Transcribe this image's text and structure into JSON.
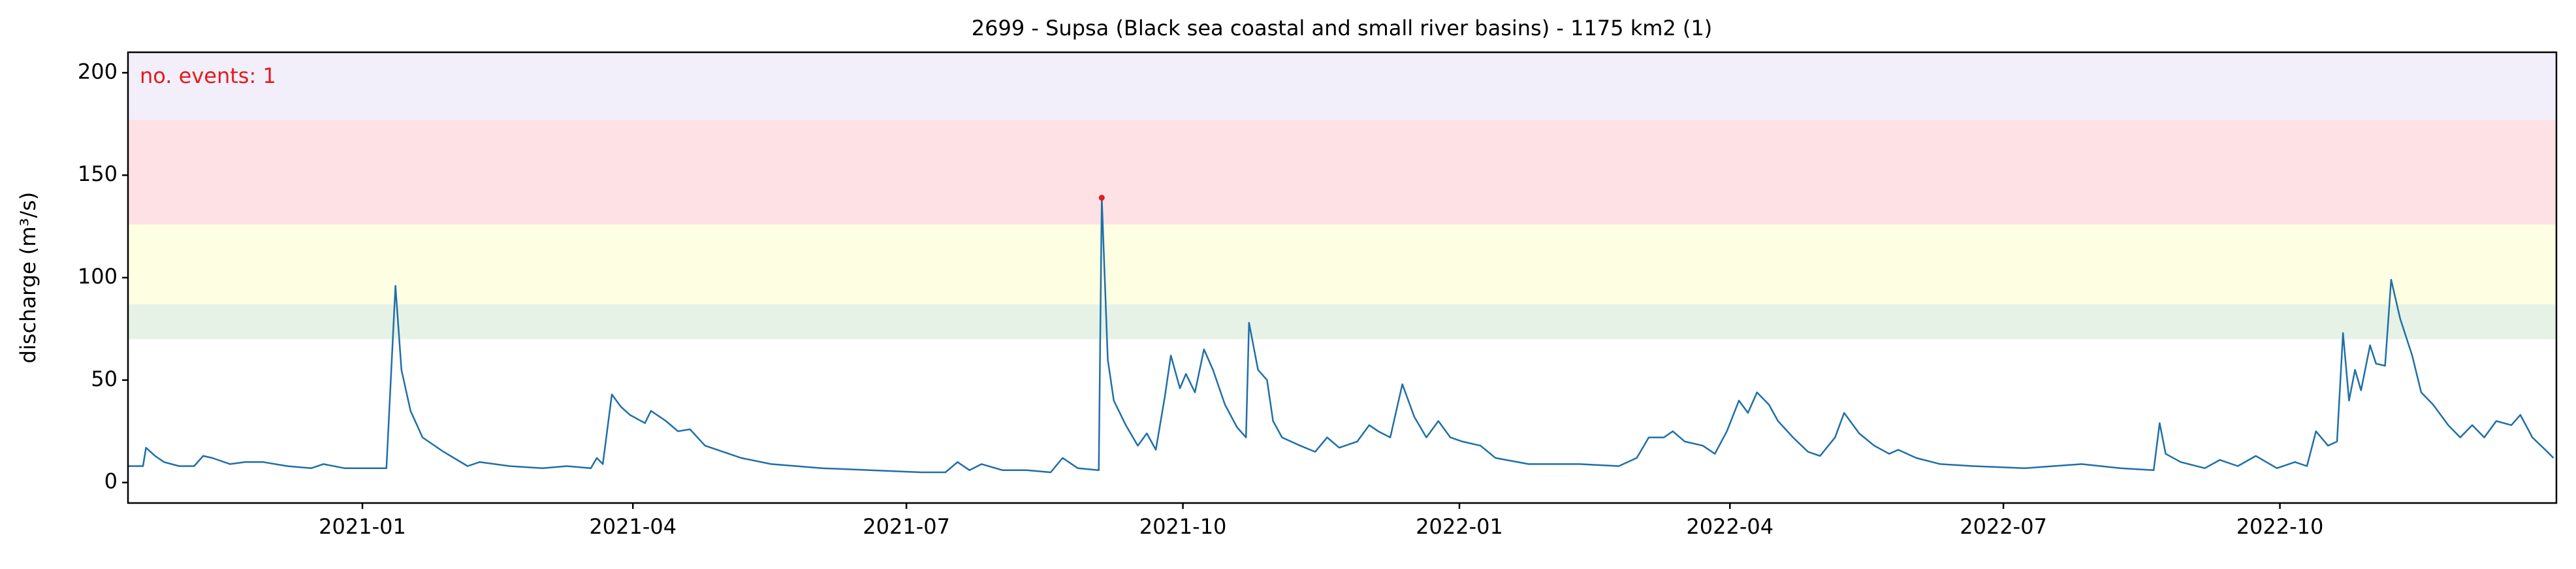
{
  "chart_data": {
    "type": "line",
    "title": "2699 - Supsa (Black sea coastal and small river basins) - 1175 km2 (1)",
    "y_label": "discharge (m³/s)",
    "annotation": "no. events: 1",
    "annotation_color": "#e41a1c",
    "color": "#1f6fa8",
    "xlim": [
      "2020-10-15",
      "2023-01-01"
    ],
    "xticks": [
      {
        "value": "2021-01-01",
        "label": "2021-01"
      },
      {
        "value": "2021-04-01",
        "label": "2021-04"
      },
      {
        "value": "2021-07-01",
        "label": "2021-07"
      },
      {
        "value": "2021-10-01",
        "label": "2021-10"
      },
      {
        "value": "2022-01-01",
        "label": "2022-01"
      },
      {
        "value": "2022-04-01",
        "label": "2022-04"
      },
      {
        "value": "2022-07-01",
        "label": "2022-07"
      },
      {
        "value": "2022-10-01",
        "label": "2022-10"
      }
    ],
    "ylim": [
      -10,
      210
    ],
    "yticks": [
      0,
      50,
      100,
      150,
      200
    ],
    "bands": [
      {
        "from": 70,
        "to": 87,
        "color": "#e6f2e6"
      },
      {
        "from": 87,
        "to": 126,
        "color": "#fefee2"
      },
      {
        "from": 126,
        "to": 177,
        "color": "#fee1e4"
      },
      {
        "from": 177,
        "to": 210,
        "color": "#f2effa"
      }
    ],
    "events": [
      {
        "x": "2021-09-04",
        "y": 139,
        "color": "#e41a1c"
      }
    ],
    "x": [
      "2020-10-15",
      "2020-10-20",
      "2020-10-21",
      "2020-10-24",
      "2020-10-27",
      "2020-11-01",
      "2020-11-06",
      "2020-11-09",
      "2020-11-12",
      "2020-11-18",
      "2020-11-23",
      "2020-11-29",
      "2020-12-07",
      "2020-12-15",
      "2020-12-19",
      "2020-12-26",
      "2021-01-09",
      "2021-01-12",
      "2021-01-14",
      "2021-01-17",
      "2021-01-21",
      "2021-01-28",
      "2021-02-05",
      "2021-02-09",
      "2021-02-19",
      "2021-03-02",
      "2021-03-10",
      "2021-03-18",
      "2021-03-20",
      "2021-03-22",
      "2021-03-25",
      "2021-03-28",
      "2021-03-31",
      "2021-04-05",
      "2021-04-07",
      "2021-04-12",
      "2021-04-16",
      "2021-04-20",
      "2021-04-25",
      "2021-05-01",
      "2021-05-07",
      "2021-05-17",
      "2021-06-03",
      "2021-06-19",
      "2021-07-06",
      "2021-07-14",
      "2021-07-18",
      "2021-07-22",
      "2021-07-26",
      "2021-08-02",
      "2021-08-10",
      "2021-08-18",
      "2021-08-22",
      "2021-08-27",
      "2021-09-03",
      "2021-09-04",
      "2021-09-06",
      "2021-09-08",
      "2021-09-12",
      "2021-09-16",
      "2021-09-19",
      "2021-09-22",
      "2021-09-25",
      "2021-09-27",
      "2021-09-30",
      "2021-10-02",
      "2021-10-05",
      "2021-10-08",
      "2021-10-11",
      "2021-10-15",
      "2021-10-19",
      "2021-10-22",
      "2021-10-23",
      "2021-10-26",
      "2021-10-29",
      "2021-10-31",
      "2021-11-03",
      "2021-11-09",
      "2021-11-14",
      "2021-11-18",
      "2021-11-22",
      "2021-11-28",
      "2021-12-02",
      "2021-12-05",
      "2021-12-09",
      "2021-12-13",
      "2021-12-17",
      "2021-12-21",
      "2021-12-25",
      "2021-12-29",
      "2022-01-02",
      "2022-01-08",
      "2022-01-13",
      "2022-01-24",
      "2022-02-10",
      "2022-02-23",
      "2022-03-01",
      "2022-03-05",
      "2022-03-10",
      "2022-03-13",
      "2022-03-17",
      "2022-03-23",
      "2022-03-27",
      "2022-03-31",
      "2022-04-04",
      "2022-04-07",
      "2022-04-10",
      "2022-04-14",
      "2022-04-17",
      "2022-04-22",
      "2022-04-27",
      "2022-05-01",
      "2022-05-06",
      "2022-05-09",
      "2022-05-14",
      "2022-05-19",
      "2022-05-24",
      "2022-05-27",
      "2022-06-02",
      "2022-06-10",
      "2022-06-21",
      "2022-07-08",
      "2022-07-27",
      "2022-08-09",
      "2022-08-20",
      "2022-08-22",
      "2022-08-24",
      "2022-08-29",
      "2022-09-06",
      "2022-09-11",
      "2022-09-17",
      "2022-09-23",
      "2022-09-30",
      "2022-10-06",
      "2022-10-10",
      "2022-10-13",
      "2022-10-17",
      "2022-10-20",
      "2022-10-22",
      "2022-10-24",
      "2022-10-26",
      "2022-10-28",
      "2022-10-31",
      "2022-11-02",
      "2022-11-05",
      "2022-11-07",
      "2022-11-10",
      "2022-11-14",
      "2022-11-17",
      "2022-11-21",
      "2022-11-26",
      "2022-11-30",
      "2022-12-04",
      "2022-12-08",
      "2022-12-12",
      "2022-12-17",
      "2022-12-20",
      "2022-12-24",
      "2022-12-29",
      "2022-12-31"
    ],
    "values": [
      8,
      8,
      17,
      13,
      10,
      8,
      8,
      13,
      12,
      9,
      10,
      10,
      8,
      7,
      9,
      7,
      7,
      96,
      55,
      35,
      22,
      15,
      8,
      10,
      8,
      7,
      8,
      7,
      12,
      9,
      43,
      37,
      33,
      29,
      35,
      30,
      25,
      26,
      18,
      15,
      12,
      9,
      7,
      6,
      5,
      5,
      10,
      6,
      9,
      6,
      6,
      5,
      12,
      7,
      6,
      139,
      60,
      40,
      28,
      18,
      24,
      16,
      42,
      62,
      46,
      53,
      44,
      65,
      55,
      38,
      27,
      22,
      78,
      55,
      50,
      30,
      22,
      18,
      15,
      22,
      17,
      20,
      28,
      25,
      22,
      48,
      32,
      22,
      30,
      22,
      20,
      18,
      12,
      9,
      9,
      8,
      12,
      22,
      22,
      25,
      20,
      18,
      14,
      25,
      40,
      34,
      44,
      38,
      30,
      22,
      15,
      13,
      22,
      34,
      24,
      18,
      14,
      16,
      12,
      9,
      8,
      7,
      9,
      7,
      6,
      29,
      14,
      10,
      7,
      11,
      8,
      13,
      7,
      10,
      8,
      25,
      18,
      20,
      73,
      40,
      55,
      45,
      67,
      58,
      57,
      99,
      80,
      62,
      44,
      38,
      28,
      22,
      28,
      22,
      30,
      28,
      33,
      22,
      15,
      12
    ]
  }
}
